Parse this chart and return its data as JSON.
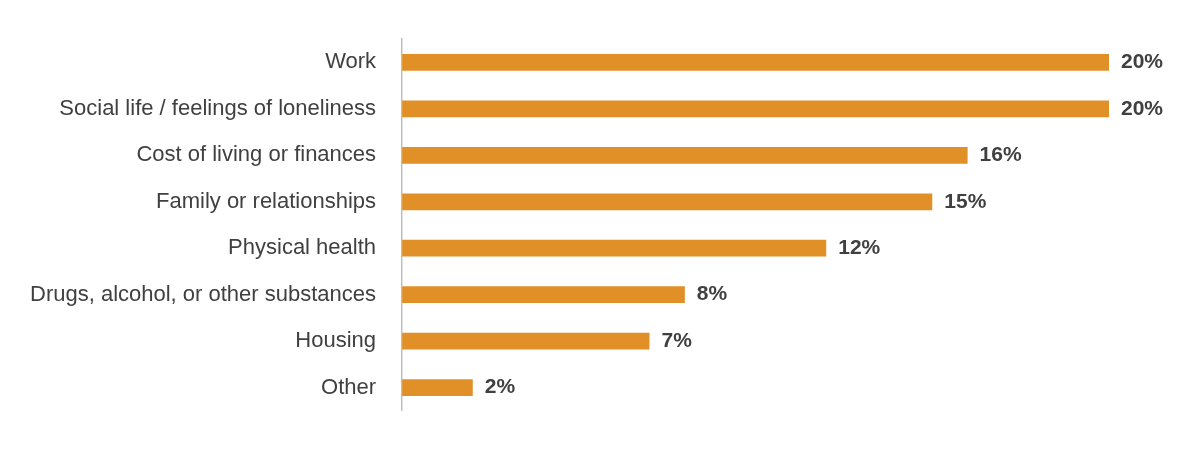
{
  "chart_data": {
    "type": "bar",
    "orientation": "horizontal",
    "categories": [
      "Work",
      "Social life / feelings of loneliness",
      "Cost of living or finances",
      "Family or relationships",
      "Physical health",
      "Drugs, alcohol, or other substances",
      "Housing",
      "Other"
    ],
    "values": [
      20,
      20,
      16,
      15,
      12,
      8,
      7,
      2
    ],
    "color": "#e09026",
    "value_labels": [
      "20%",
      "20%",
      "16%",
      "15%",
      "12%",
      "8%",
      "7%",
      "2%"
    ]
  }
}
